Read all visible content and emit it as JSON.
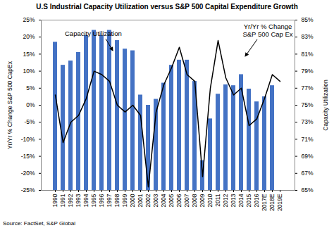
{
  "chart_data": {
    "type": "bar",
    "title": "U.S Industrial Capacity Utilization versus S&P 500 Capital Expenditure Growth",
    "categories": [
      "1990",
      "1991",
      "1992",
      "1993",
      "1994",
      "1995",
      "1996",
      "1997",
      "1998",
      "1999",
      "2000",
      "2001",
      "2002",
      "2003",
      "2004",
      "2005",
      "2006",
      "2007",
      "2008",
      "2009",
      "2010",
      "2011",
      "2012",
      "2013",
      "2014",
      "2015",
      "2016",
      "2017E",
      "2018E",
      "2019E"
    ],
    "series": [
      {
        "name": "Capacity Utilization",
        "type": "bar",
        "axis": "y2",
        "color": "#4472c4",
        "values": [
          82.4,
          79.7,
          80.2,
          81.2,
          83.2,
          83.8,
          83.2,
          83.8,
          82.6,
          81.6,
          81.4,
          76.2,
          75.0,
          75.7,
          77.6,
          79.7,
          80.3,
          80.3,
          77.8,
          68.5,
          73.4,
          76.3,
          77.4,
          77.3,
          78.6,
          76.9,
          75.4,
          76.0,
          77.3,
          null
        ]
      },
      {
        "name": "Yr/Yr % Change S&P 500 Cap Ex",
        "type": "line",
        "color": "#000000",
        "values": [
          3,
          -11,
          -5,
          -3,
          2,
          10,
          9,
          7,
          0,
          -2,
          0,
          -3,
          -24,
          -2,
          6,
          11,
          17,
          9,
          7,
          -21,
          5,
          19,
          8,
          3,
          5,
          -6,
          -4,
          2,
          9,
          7
        ]
      }
    ],
    "ylabel": "Yr/Yr % Change S&P 500 CapEx",
    "y2label": "Capacity Utilization",
    "ylim": [
      -25,
      25
    ],
    "yticks": [
      {
        "value": -25,
        "label": "-25%"
      },
      {
        "value": -20,
        "label": "-20%"
      },
      {
        "value": -15,
        "label": "-15%"
      },
      {
        "value": -10,
        "label": "-10%"
      },
      {
        "value": -5,
        "label": "-5%"
      },
      {
        "value": 0,
        "label": "0%"
      },
      {
        "value": 5,
        "label": "5%"
      },
      {
        "value": 10,
        "label": "10%"
      },
      {
        "value": 15,
        "label": "15%"
      },
      {
        "value": 20,
        "label": "20%"
      },
      {
        "value": 25,
        "label": "25%"
      }
    ],
    "y2lim": [
      65,
      85
    ],
    "y2ticks": [
      {
        "value": 65,
        "label": "65%"
      },
      {
        "value": 67,
        "label": "67%"
      },
      {
        "value": 69,
        "label": "69%"
      },
      {
        "value": 71,
        "label": "71%"
      },
      {
        "value": 73,
        "label": "73%"
      },
      {
        "value": 75,
        "label": "75%"
      },
      {
        "value": 77,
        "label": "77%"
      },
      {
        "value": 79,
        "label": "79%"
      },
      {
        "value": 81,
        "label": "81%"
      },
      {
        "value": 83,
        "label": "83%"
      },
      {
        "value": 85,
        "label": "85%"
      }
    ],
    "source": "Source: FactSet, S&P Global",
    "grid": false
  }
}
